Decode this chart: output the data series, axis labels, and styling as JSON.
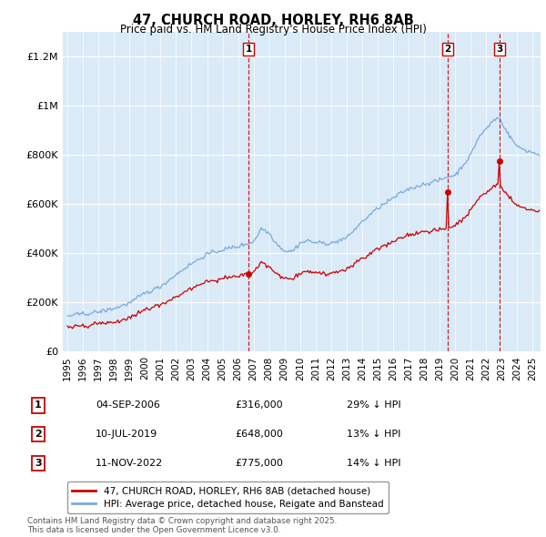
{
  "title": "47, CHURCH ROAD, HORLEY, RH6 8AB",
  "subtitle": "Price paid vs. HM Land Registry's House Price Index (HPI)",
  "bg_color": "#daeaf7",
  "red_color": "#cc0000",
  "blue_color": "#7aaadd",
  "ylim": [
    0,
    1300000
  ],
  "yticks": [
    0,
    200000,
    400000,
    600000,
    800000,
    1000000,
    1200000
  ],
  "xlim_start": 1994.7,
  "xlim_end": 2025.5,
  "transactions": [
    {
      "num": 1,
      "date": "04-SEP-2006",
      "price": 316000,
      "year": 2006.67,
      "price_str": "£316,000",
      "hpi_note": "29% ↓ HPI"
    },
    {
      "num": 2,
      "date": "10-JUL-2019",
      "price": 648000,
      "year": 2019.52,
      "price_str": "£648,000",
      "hpi_note": "13% ↓ HPI"
    },
    {
      "num": 3,
      "date": "11-NOV-2022",
      "price": 775000,
      "year": 2022.86,
      "price_str": "£775,000",
      "hpi_note": "14% ↓ HPI"
    }
  ],
  "legend_label_red": "47, CHURCH ROAD, HORLEY, RH6 8AB (detached house)",
  "legend_label_blue": "HPI: Average price, detached house, Reigate and Banstead",
  "footer": "Contains HM Land Registry data © Crown copyright and database right 2025.\nThis data is licensed under the Open Government Licence v3.0."
}
